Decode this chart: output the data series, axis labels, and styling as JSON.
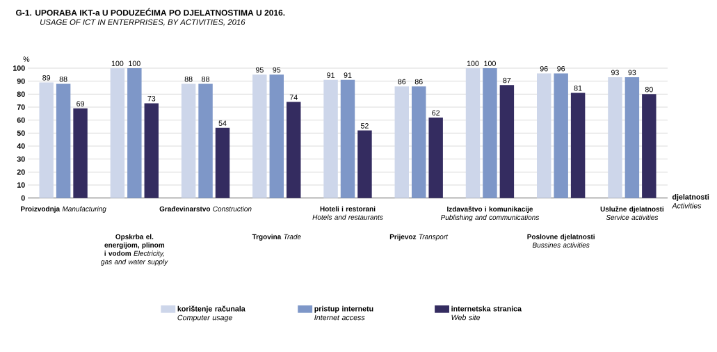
{
  "chart_data": {
    "type": "bar",
    "title": "G-1. UPORABA IKT-a U PODUZEĆIMA PO DJELATNOSTIMA U 2016.",
    "subtitle": "USAGE OF ICT IN ENTERPRISES, BY ACTIVITIES, 2016",
    "ylabel": "%",
    "xlabel": "**djelatnosti** *Activities*",
    "categories": [
      "**Proizvodnja** *Manufacturing*",
      "**Opskrba el. energijom, plinom i vodom** *Electricity, gas and water supply*",
      "**Građevinarstvo** *Construction*",
      "**Trgovina** *Trade*",
      "**Hoteli i restorani** *Hotels and restaurants*",
      "**Prijevoz** *Transport*",
      "**Izdavaštvo i komunikacije** *Publishing and communications*",
      "**Poslovne djelatnosti** *Bussines activities*",
      "**Uslužne djelatnosti** *Service activities*"
    ],
    "series": [
      {
        "name": "**korištenje računala** *Computer usage*",
        "color": "#cdd6ea",
        "values": [
          89,
          100,
          88,
          95,
          91,
          86,
          100,
          96,
          93
        ]
      },
      {
        "name": "**pristup internetu** *Internet access*",
        "color": "#7e97c8",
        "values": [
          88,
          100,
          88,
          95,
          91,
          86,
          100,
          96,
          93
        ]
      },
      {
        "name": "**internetska stranica** *Web site*",
        "color": "#342c60",
        "values": [
          69,
          73,
          54,
          74,
          52,
          62,
          87,
          81,
          80
        ]
      }
    ],
    "ylim": [
      0,
      100
    ],
    "yticks": [
      0,
      10,
      20,
      30,
      40,
      50,
      60,
      70,
      80,
      90,
      100
    ],
    "grid": "y",
    "legend": "bottom",
    "data_labels": true
  }
}
